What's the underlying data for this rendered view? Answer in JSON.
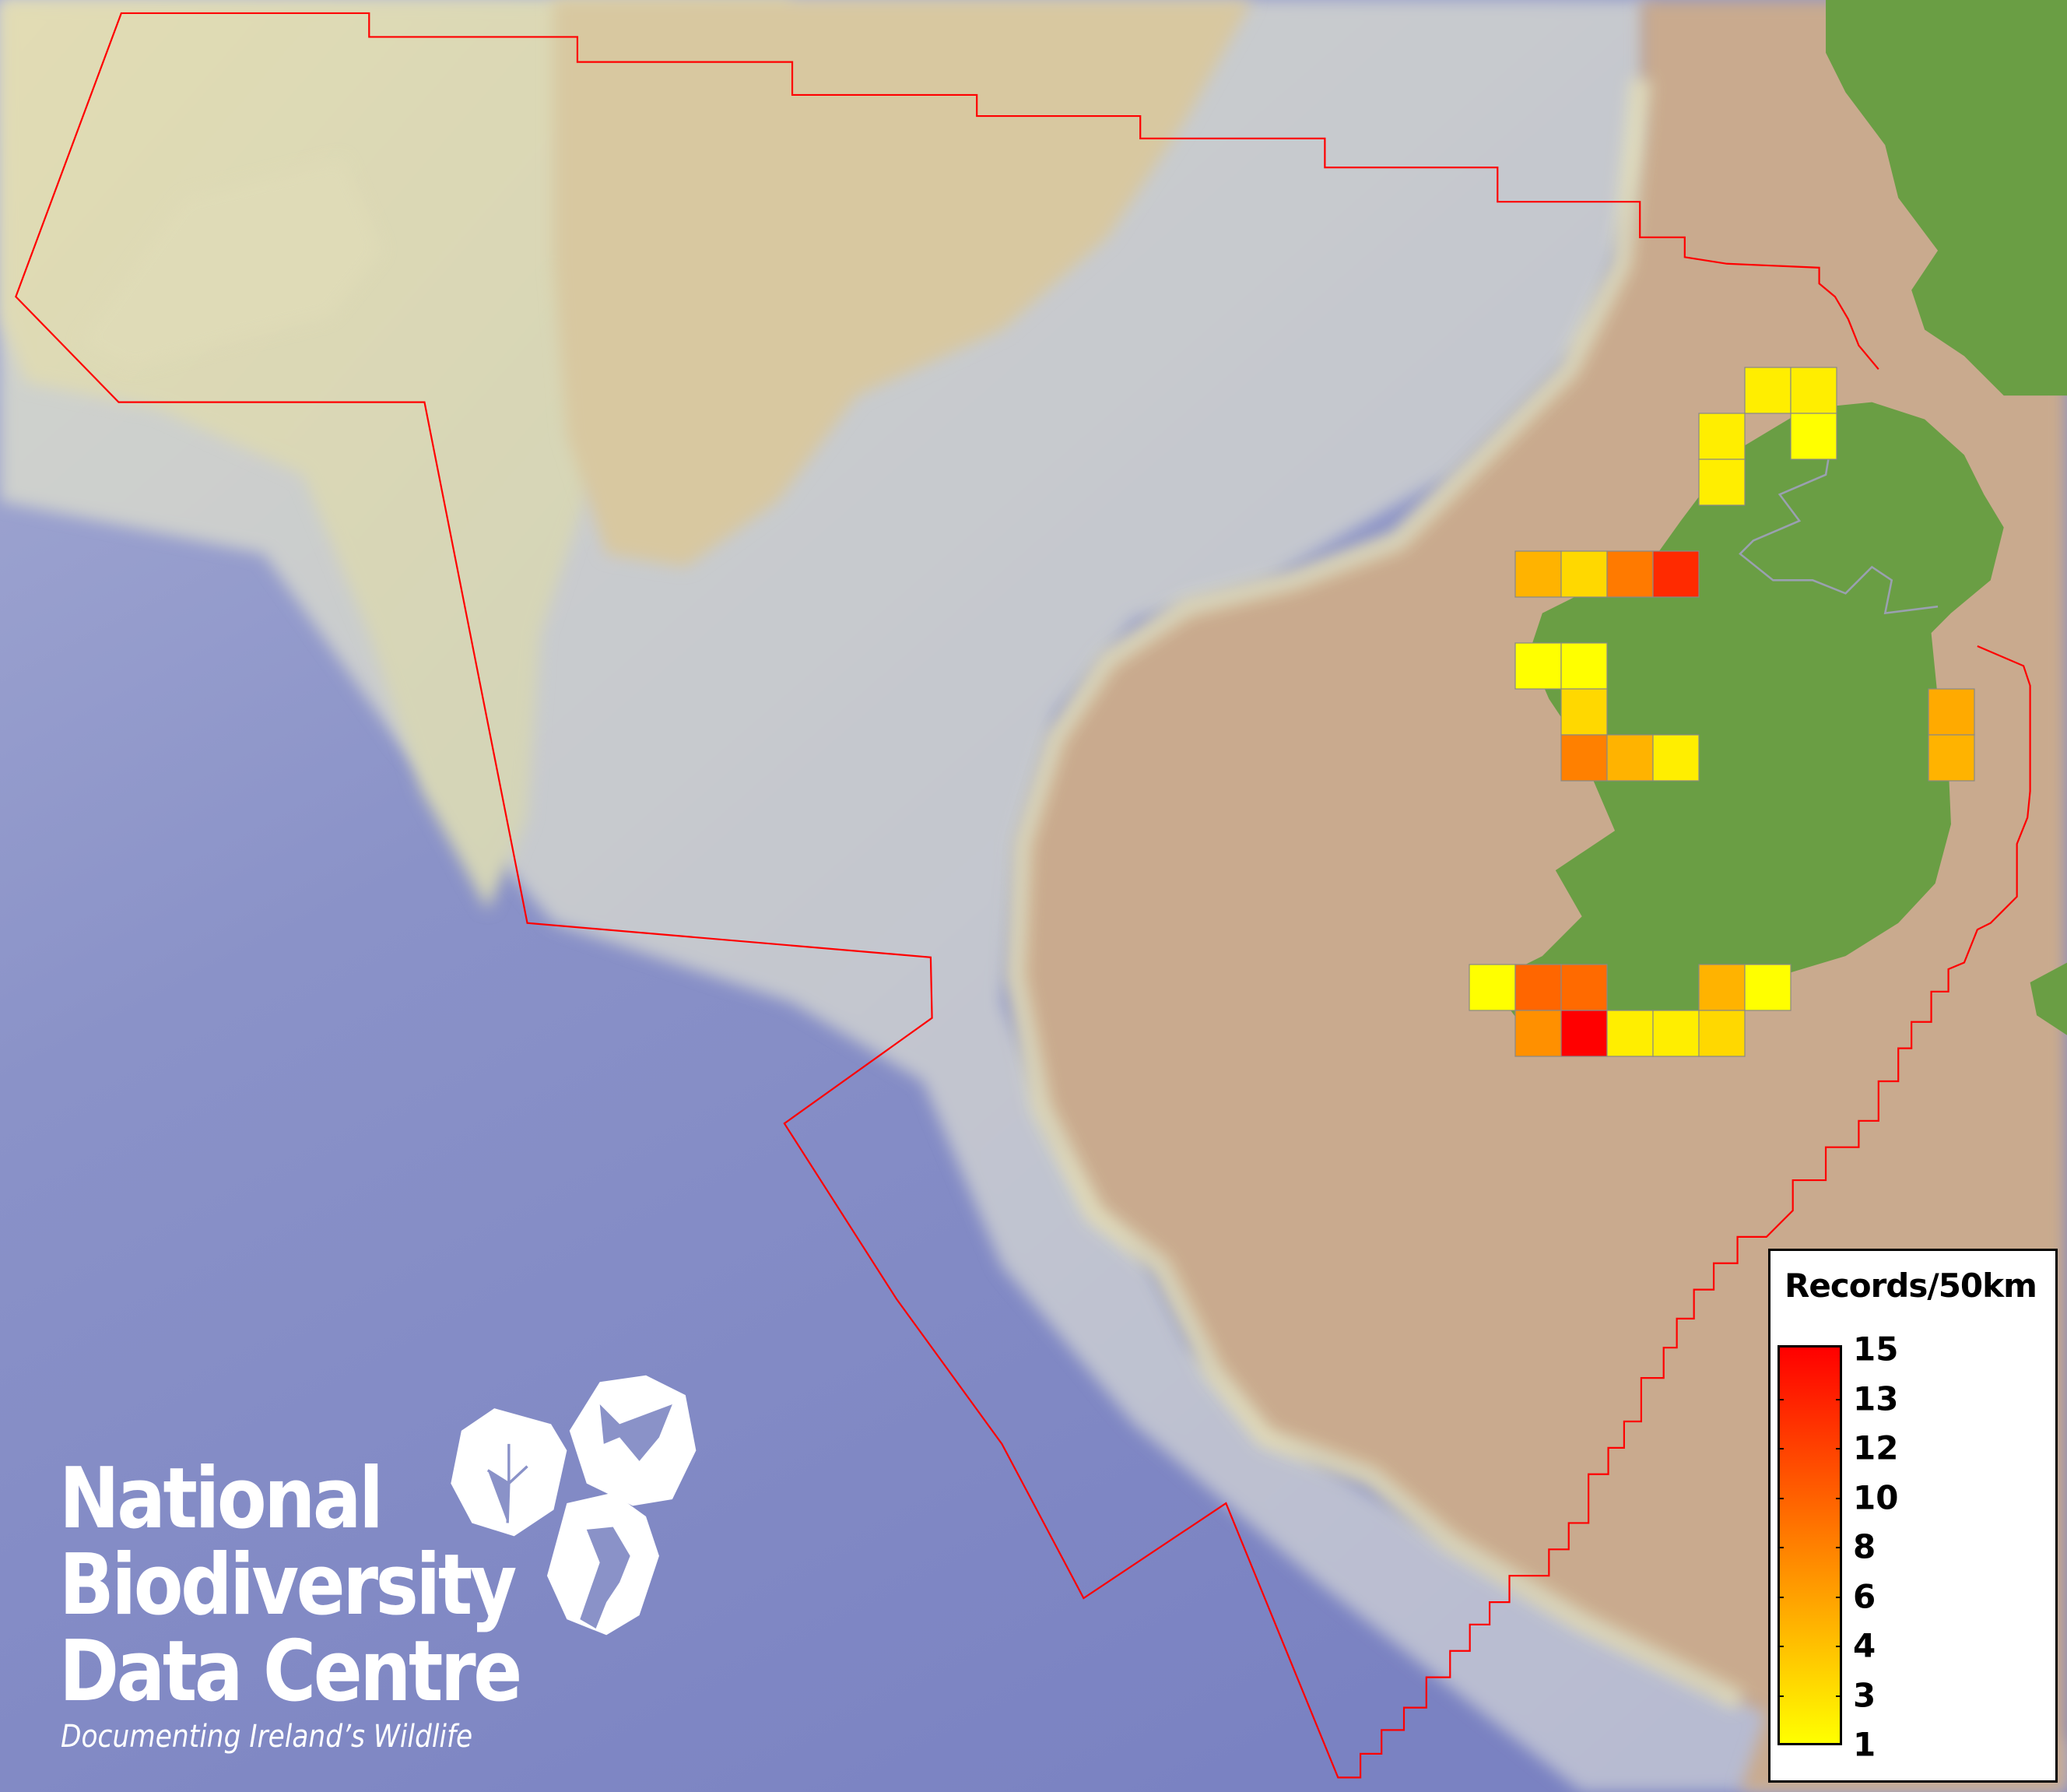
{
  "logo": {
    "line1": "National",
    "line2": "Biodiversity",
    "line3": "Data Centre",
    "tagline": "Documenting Ireland’s Wildlife",
    "icons": [
      "tree-icon",
      "butterfly-icon",
      "seahorse-icon"
    ]
  },
  "legend": {
    "title": "Records/50km",
    "labels": [
      "15",
      "13",
      "12",
      "10",
      "8",
      "6",
      "4",
      "3",
      "1"
    ],
    "color_min": "#ffff00",
    "color_mid": "#ff8000",
    "color_max": "#ff0000"
  },
  "map": {
    "colors": {
      "deep_sea": "#7c84c4",
      "slope": "#c4c8d8",
      "bank": "#dcdab4",
      "shelf": "#c9aa8e",
      "land": "#6a9e44",
      "boundary": "#ff0000",
      "border": "#9aa0b0"
    },
    "grid_cells": [
      {
        "records": 2,
        "color": "#ffee00"
      },
      {
        "records": 2,
        "color": "#ffee00"
      },
      {
        "records": 2,
        "color": "#ffee00"
      },
      {
        "records": 1,
        "color": "#ffff00"
      },
      {
        "records": 2,
        "color": "#ffee00"
      },
      {
        "records": 5,
        "color": "#ffb300"
      },
      {
        "records": 3,
        "color": "#ffd800"
      },
      {
        "records": 8,
        "color": "#ff7a00"
      },
      {
        "records": 13,
        "color": "#ff2a00"
      },
      {
        "records": 1,
        "color": "#ffff00"
      },
      {
        "records": 1,
        "color": "#ffff00"
      },
      {
        "records": 3,
        "color": "#ffd800"
      },
      {
        "records": 5,
        "color": "#ffaa00"
      },
      {
        "records": 8,
        "color": "#ff8000"
      },
      {
        "records": 5,
        "color": "#ffb300"
      },
      {
        "records": 2,
        "color": "#ffee00"
      },
      {
        "records": 5,
        "color": "#ffb300"
      },
      {
        "records": 1,
        "color": "#ffff00"
      },
      {
        "records": 10,
        "color": "#ff6600"
      },
      {
        "records": 10,
        "color": "#ff6a00"
      },
      {
        "records": 5,
        "color": "#ffb300"
      },
      {
        "records": 1,
        "color": "#ffff00"
      },
      {
        "records": 7,
        "color": "#ff9000"
      },
      {
        "records": 15,
        "color": "#ff0000"
      },
      {
        "records": 2,
        "color": "#ffee00"
      },
      {
        "records": 2,
        "color": "#ffee00"
      },
      {
        "records": 3,
        "color": "#ffd800"
      }
    ]
  }
}
